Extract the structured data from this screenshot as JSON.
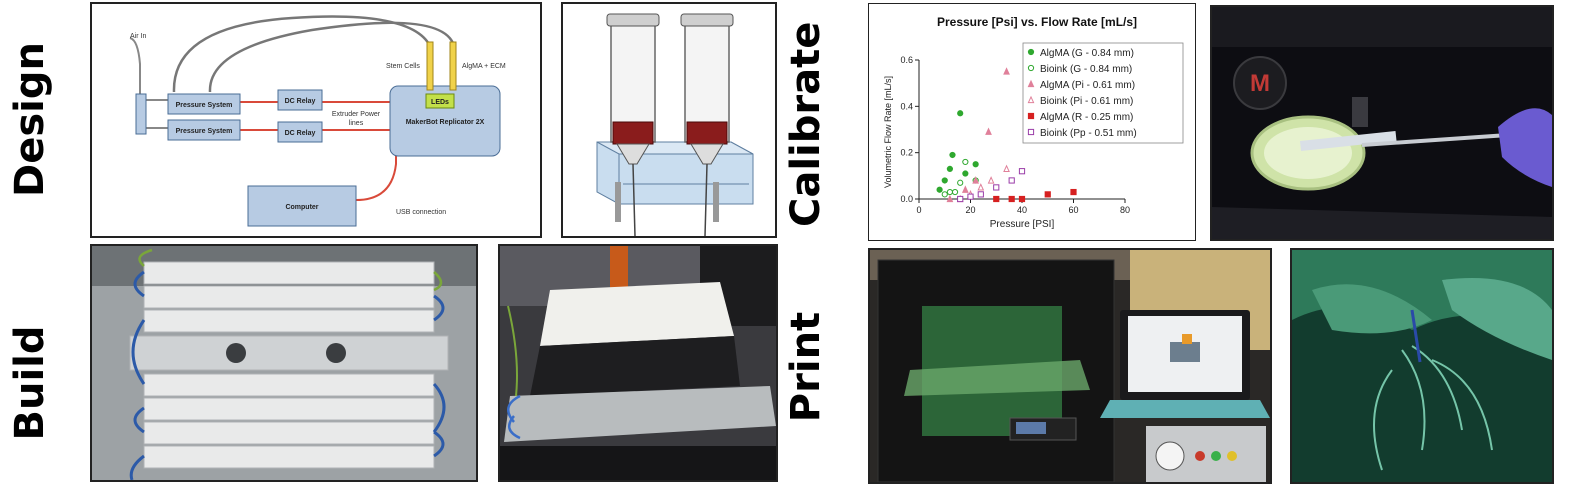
{
  "section_labels": {
    "design": "Design",
    "build": "Build",
    "calibrate": "Calibrate",
    "print": "Print"
  },
  "schematic": {
    "air_in": "Air In",
    "pressure_system_1": "Pressure System",
    "pressure_system_2": "Pressure System",
    "dc_relay_1": "DC Relay",
    "dc_relay_2": "DC Relay",
    "extruder_power_line1": "Extruder Power",
    "extruder_power_line2": "lines",
    "stem_cells": "Stem Cells",
    "algma_ecm": "AlgMA + ECM",
    "leds": "LEDs",
    "makerbot": "MakerBot Replicator 2X",
    "computer": "Computer",
    "usb": "USB connection"
  },
  "chart_data": {
    "type": "scatter",
    "title": "Pressure [Psi] vs.  Flow Rate [mL/s]",
    "xlabel": "Pressure [PSI]",
    "ylabel": "Volumetric  Flow Rate [mL/s]",
    "xlim": [
      0,
      80
    ],
    "ylim": [
      0,
      0.6
    ],
    "xticks": [
      "0",
      "20",
      "40",
      "60",
      "80"
    ],
    "yticks": [
      "0.0",
      "0.2",
      "0.4",
      "0.6"
    ],
    "legend_position": "top-right",
    "series": [
      {
        "name": "AlgMA (G - 0.84 mm)",
        "color": "#2fa82f",
        "marker": "circle-filled",
        "points": [
          [
            8,
            0.04
          ],
          [
            10,
            0.08
          ],
          [
            12,
            0.13
          ],
          [
            13,
            0.19
          ],
          [
            16,
            0.37
          ],
          [
            18,
            0.11
          ],
          [
            22,
            0.15
          ]
        ]
      },
      {
        "name": "Bioink (G - 0.84 mm)",
        "color": "#2fa82f",
        "marker": "circle-open",
        "points": [
          [
            10,
            0.02
          ],
          [
            12,
            0.03
          ],
          [
            14,
            0.03
          ],
          [
            16,
            0.07
          ],
          [
            18,
            0.16
          ],
          [
            22,
            0.08
          ]
        ]
      },
      {
        "name": "AlgMA (Pi - 0.61 mm)",
        "color": "#e0809a",
        "marker": "triangle-filled",
        "points": [
          [
            12,
            0.0
          ],
          [
            18,
            0.04
          ],
          [
            22,
            0.08
          ],
          [
            27,
            0.29
          ],
          [
            34,
            0.55
          ]
        ]
      },
      {
        "name": "Bioink (Pi - 0.61 mm)",
        "color": "#e0809a",
        "marker": "triangle-open",
        "points": [
          [
            16,
            0.0
          ],
          [
            20,
            0.02
          ],
          [
            24,
            0.05
          ],
          [
            28,
            0.08
          ],
          [
            34,
            0.13
          ]
        ]
      },
      {
        "name": "AlgMA (R - 0.25 mm)",
        "color": "#d62020",
        "marker": "square-filled",
        "points": [
          [
            30,
            0.0
          ],
          [
            36,
            0.0
          ],
          [
            40,
            0.0
          ],
          [
            50,
            0.02
          ],
          [
            60,
            0.03
          ]
        ]
      },
      {
        "name": "Bioink (Pp - 0.51 mm)",
        "color": "#9a3ca8",
        "marker": "square-open",
        "points": [
          [
            16,
            0.0
          ],
          [
            20,
            0.01
          ],
          [
            24,
            0.02
          ],
          [
            30,
            0.05
          ],
          [
            36,
            0.08
          ],
          [
            40,
            0.12
          ]
        ]
      }
    ]
  }
}
